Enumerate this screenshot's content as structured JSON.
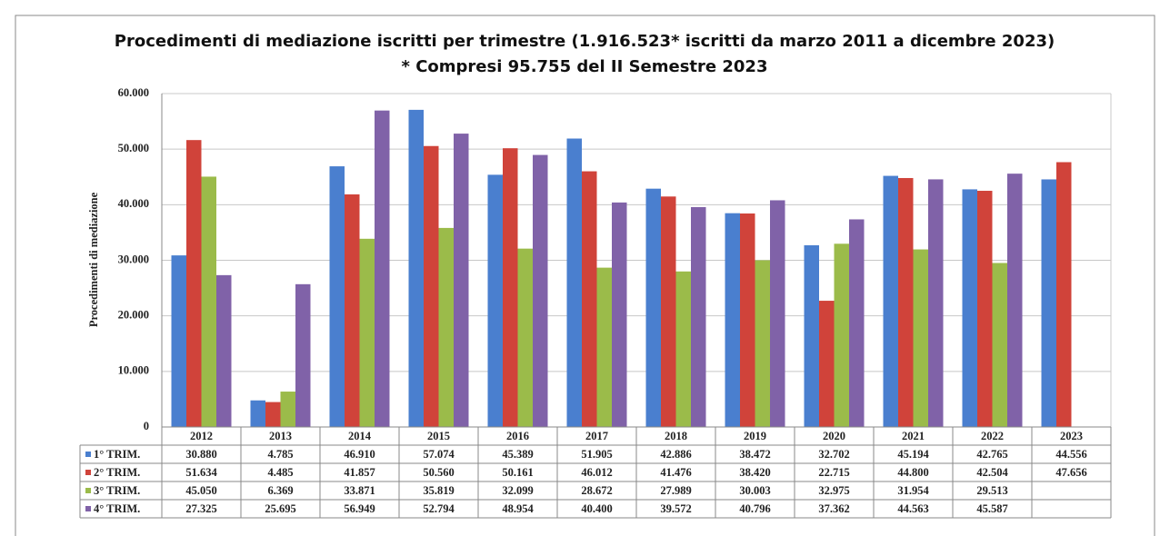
{
  "chart_data": {
    "type": "bar",
    "title": "Procedimenti di mediazione iscritti per trimestre (1.916.523* iscritti da marzo 2011 a dicembre 2023)",
    "subtitle": "* Compresi 95.755 del II Semestre 2023",
    "y_label": "Procedimenti di mediazione",
    "categories": [
      "2012",
      "2013",
      "2014",
      "2015",
      "2016",
      "2017",
      "2018",
      "2019",
      "2020",
      "2021",
      "2022",
      "2023"
    ],
    "series": [
      {
        "name": "1° TRIM.",
        "color": "#4a7fcf",
        "values": [
          30880,
          4785,
          46910,
          57074,
          45389,
          51905,
          42886,
          38472,
          32702,
          45194,
          42765,
          44556
        ],
        "value_labels": [
          "30.880",
          "4.785",
          "46.910",
          "57.074",
          "45.389",
          "51.905",
          "42.886",
          "38.472",
          "32.702",
          "45.194",
          "42.765",
          "44.556"
        ]
      },
      {
        "name": "2° TRIM.",
        "color": "#d0433a",
        "values": [
          51634,
          4485,
          41857,
          50560,
          50161,
          46012,
          41476,
          38420,
          22715,
          44800,
          42504,
          47656
        ],
        "value_labels": [
          "51.634",
          "4.485",
          "41.857",
          "50.560",
          "50.161",
          "46.012",
          "41.476",
          "38.420",
          "22.715",
          "44.800",
          "42.504",
          "47.656"
        ]
      },
      {
        "name": "3° TRIM.",
        "color": "#9bbb4a",
        "values": [
          45050,
          6369,
          33871,
          35819,
          32099,
          28672,
          27989,
          30003,
          32975,
          31954,
          29513,
          null
        ],
        "value_labels": [
          "45.050",
          "6.369",
          "33.871",
          "35.819",
          "32.099",
          "28.672",
          "27.989",
          "30.003",
          "32.975",
          "31.954",
          "29.513",
          null
        ]
      },
      {
        "name": "4° TRIM.",
        "color": "#8062a8",
        "values": [
          27325,
          25695,
          56949,
          52794,
          48954,
          40400,
          39572,
          40796,
          37362,
          44563,
          45587,
          null
        ],
        "value_labels": [
          "27.325",
          "25.695",
          "56.949",
          "52.794",
          "48.954",
          "40.400",
          "39.572",
          "40.796",
          "37.362",
          "44.563",
          "45.587",
          null
        ]
      }
    ],
    "ylim": [
      0,
      60000
    ],
    "yticks": [
      0,
      {
        "value": 10000,
        "label": "10.000"
      },
      {
        "value": 20000,
        "label": "20.000"
      },
      {
        "value": 30000,
        "label": "30.000"
      },
      {
        "value": 40000,
        "label": "40.000"
      },
      {
        "value": 50000,
        "label": "50.000"
      },
      {
        "value": 60000,
        "label": "60.000"
      }
    ],
    "grid": true
  }
}
